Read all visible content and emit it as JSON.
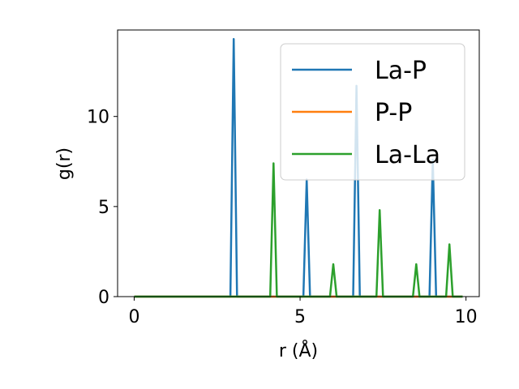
{
  "chart_data": {
    "type": "line",
    "title": "",
    "xlabel": "r (Å)",
    "ylabel": "g(r)",
    "xlim": [
      -0.5,
      10.4
    ],
    "ylim": [
      0,
      14.8
    ],
    "xticks": [
      0,
      5,
      10
    ],
    "xtick_labels": [
      "0",
      "5",
      "10"
    ],
    "yticks": [
      0,
      5,
      10
    ],
    "ytick_labels": [
      "0",
      "5",
      "10"
    ],
    "grid": false,
    "legend_position": "top-right",
    "series": [
      {
        "name": "La-P",
        "color": "#1f77b4",
        "x": [
          0,
          2.9,
          3.0,
          3.1,
          5.1,
          5.2,
          5.3,
          6.6,
          6.7,
          6.8,
          8.9,
          9.0,
          9.1,
          9.9
        ],
        "y": [
          0,
          0,
          14.3,
          0,
          0,
          6.5,
          0,
          0,
          11.7,
          0,
          0,
          7.6,
          0,
          0
        ]
      },
      {
        "name": "P-P",
        "color": "#ff7f0e",
        "x": [
          0,
          9.9
        ],
        "y": [
          0,
          0
        ]
      },
      {
        "name": "La-La",
        "color": "#2ca02c",
        "x": [
          0,
          4.1,
          4.2,
          4.3,
          5.9,
          6.0,
          6.1,
          7.3,
          7.4,
          7.5,
          8.4,
          8.5,
          8.6,
          9.4,
          9.5,
          9.6,
          9.9
        ],
        "y": [
          0,
          0,
          7.4,
          0,
          0,
          1.8,
          0,
          0,
          4.8,
          0,
          0,
          1.8,
          0,
          0,
          2.9,
          0,
          0
        ]
      }
    ]
  }
}
